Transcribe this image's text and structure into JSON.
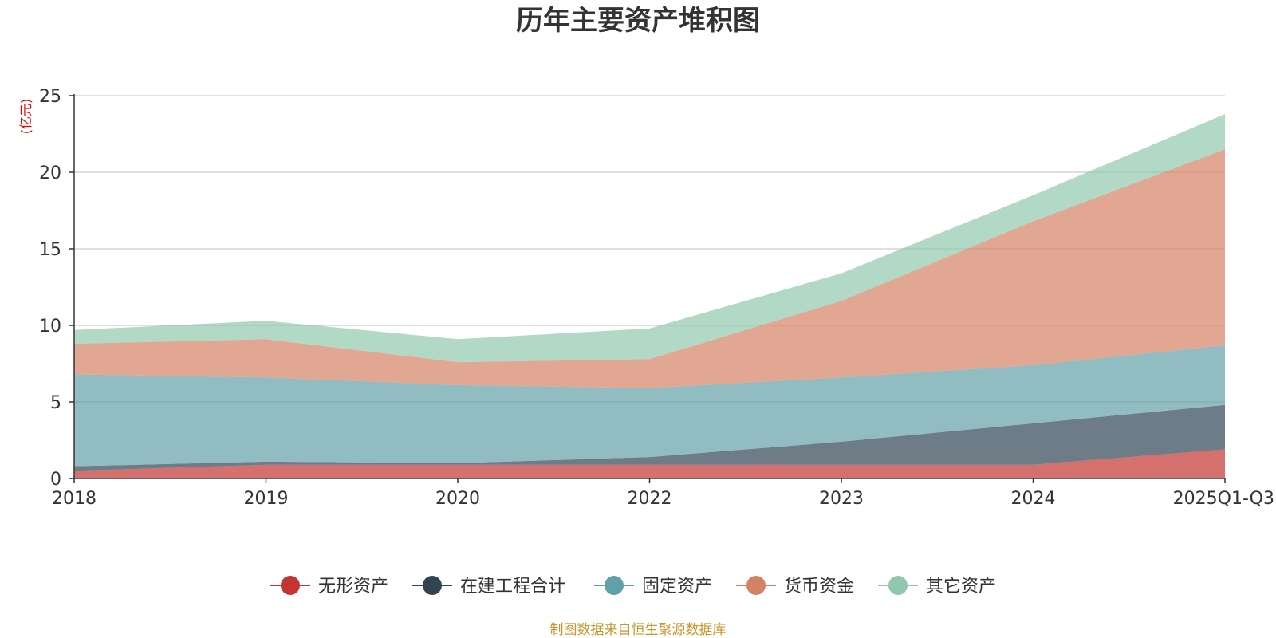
{
  "chart_data": {
    "type": "area",
    "title": "历年主要资产堆积图",
    "ylabel": "(亿元)",
    "xlabel": "",
    "ylim": [
      0,
      25
    ],
    "yticks": [
      0,
      5,
      10,
      15,
      20,
      25
    ],
    "categories": [
      "2018",
      "2019",
      "2020",
      "2022",
      "2023",
      "2024",
      "2025Q1-Q3"
    ],
    "stacked": true,
    "grid": true,
    "legend_position": "bottom",
    "series": [
      {
        "name": "无形资产",
        "color": "#c23531",
        "values": [
          0.5,
          0.9,
          0.9,
          0.9,
          0.9,
          0.9,
          1.9
        ]
      },
      {
        "name": "在建工程合计",
        "color": "#2f4554",
        "values": [
          0.3,
          0.2,
          0.1,
          0.5,
          1.5,
          2.7,
          2.9
        ]
      },
      {
        "name": "固定资产",
        "color": "#61a0a8",
        "values": [
          6.0,
          5.5,
          5.1,
          4.5,
          4.2,
          3.8,
          3.9
        ]
      },
      {
        "name": "货币资金",
        "color": "#d48265",
        "values": [
          2.0,
          2.5,
          1.5,
          1.9,
          5.0,
          9.4,
          12.8
        ]
      },
      {
        "name": "其它资产",
        "color": "#91c7ae",
        "values": [
          0.9,
          1.2,
          1.5,
          2.0,
          1.8,
          1.7,
          2.3
        ]
      }
    ],
    "source_note": "制图数据来自恒生聚源数据库"
  }
}
